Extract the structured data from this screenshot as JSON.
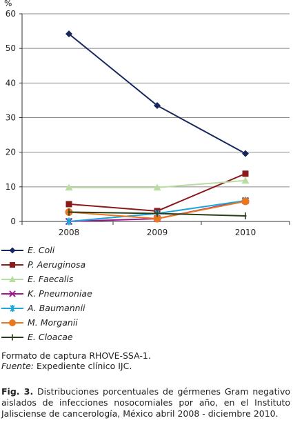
{
  "chart_data": {
    "type": "line",
    "title": "",
    "ylabel": "%",
    "xlabel": "",
    "categories": [
      "2008",
      "2009",
      "2010"
    ],
    "ylim": [
      0,
      60
    ],
    "yticks": [
      0,
      10,
      20,
      30,
      40,
      50,
      60
    ],
    "grid": "horizontal",
    "legend_position": "bottom",
    "series": [
      {
        "name": "E. Coli",
        "values": [
          54.2,
          33.5,
          19.6
        ],
        "color": "#17275e",
        "marker": "diamond"
      },
      {
        "name": "P. Aeruginosa",
        "values": [
          5.0,
          3.0,
          13.8
        ],
        "color": "#8b1a1a",
        "marker": "square"
      },
      {
        "name": "E. Faecalis",
        "values": [
          9.8,
          9.8,
          11.8
        ],
        "color": "#b9dca0",
        "marker": "triangle"
      },
      {
        "name": "K. Pneumoniae",
        "values": [
          0.0,
          0.8,
          6.0
        ],
        "color": "#a0198c",
        "marker": "x"
      },
      {
        "name": "A. Baumannii",
        "values": [
          0.0,
          2.3,
          6.0
        ],
        "color": "#1fa6d9",
        "marker": "star"
      },
      {
        "name": "M. Morganii",
        "values": [
          2.7,
          0.8,
          5.8
        ],
        "color": "#e8771f",
        "marker": "circle"
      },
      {
        "name": "E. Cloacae",
        "values": [
          2.7,
          2.3,
          1.6
        ],
        "color": "#2a3d1b",
        "marker": "plus"
      }
    ]
  },
  "source": {
    "line1": "Formato de captura RHOVE-SSA-1.",
    "fuente_label": "Fuente:",
    "fuente_text": " Expediente clínico IJC."
  },
  "caption": {
    "label": "Fig. 3.",
    "text": " Distribuciones porcentuales de gérmenes Gram negativo aislados de infecciones nosocomiales por año, en el Instituto Jalisciense de cancerología, México abril 2008 - diciembre 2010."
  }
}
